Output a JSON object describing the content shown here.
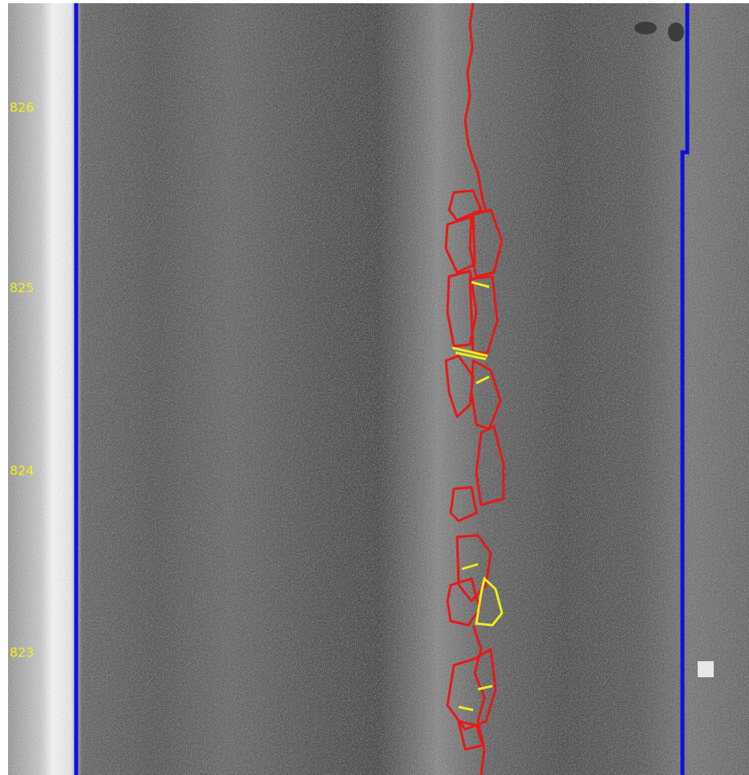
{
  "markers": [
    "826",
    "825",
    "824",
    "823"
  ]
}
